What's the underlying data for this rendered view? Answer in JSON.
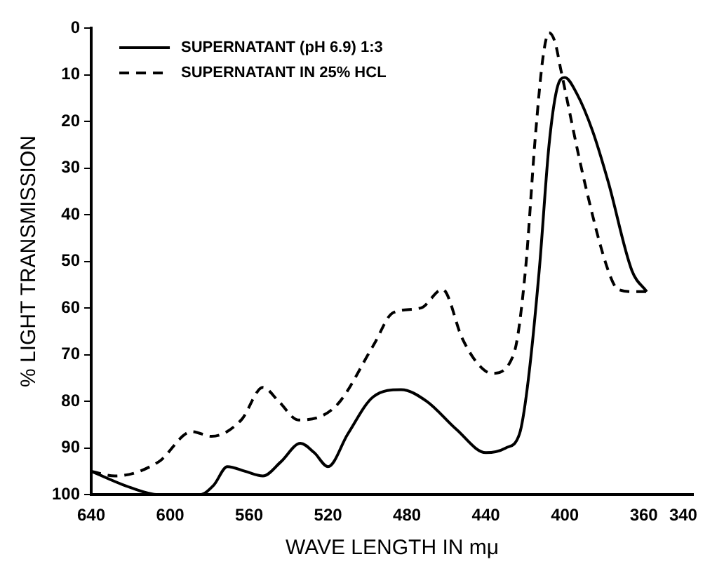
{
  "chart_data": {
    "type": "line",
    "xlabel": "WAVE LENGTH IN mμ",
    "ylabel": "% LIGHT TRANSMISSION",
    "xlim": [
      640,
      335
    ],
    "xticks": [
      640,
      600,
      560,
      520,
      480,
      440,
      400,
      360,
      340
    ],
    "ylim": [
      100,
      0
    ],
    "yticks": [
      0,
      10,
      20,
      30,
      40,
      50,
      60,
      70,
      80,
      90,
      100
    ],
    "grid": false,
    "legend": "top left",
    "marker": "none",
    "series": [
      {
        "name": "SUPERNATANT (pH 6.9) 1:3",
        "color": "#000000",
        "line_style": "solid",
        "x": [
          640,
          620,
          606,
          585,
          578,
          571,
          562,
          553,
          544,
          534,
          527,
          520,
          510,
          497,
          483,
          470,
          455,
          440,
          430,
          423,
          419,
          413,
          408,
          404,
          400,
          394,
          386,
          378,
          366,
          358.5
        ],
        "values": [
          95,
          98.5,
          100,
          100,
          98,
          94,
          95,
          96,
          93,
          89,
          91,
          94,
          87,
          79,
          77.5,
          80,
          86,
          91,
          90,
          87,
          77,
          52,
          25,
          13,
          10.6,
          14,
          22,
          33,
          52,
          56.5
        ]
      },
      {
        "name": "SUPERNATANT IN 25% HCL",
        "color": "#000000",
        "line_style": "dashed",
        "x": [
          640,
          628,
          606,
          589,
          579,
          564,
          553,
          545,
          535,
          516,
          497,
          487,
          473,
          462,
          452,
          444,
          437,
          426,
          420,
          415,
          411,
          408,
          405,
          402,
          390,
          378,
          373,
          364,
          358.5
        ],
        "values": [
          95,
          96,
          93,
          86.5,
          87.5,
          84,
          77,
          80,
          84,
          81,
          68,
          61,
          60,
          56,
          66.5,
          72,
          74,
          70,
          52,
          23.5,
          6,
          1,
          3,
          9,
          33,
          52,
          56,
          56.5,
          56.5
        ]
      }
    ]
  }
}
